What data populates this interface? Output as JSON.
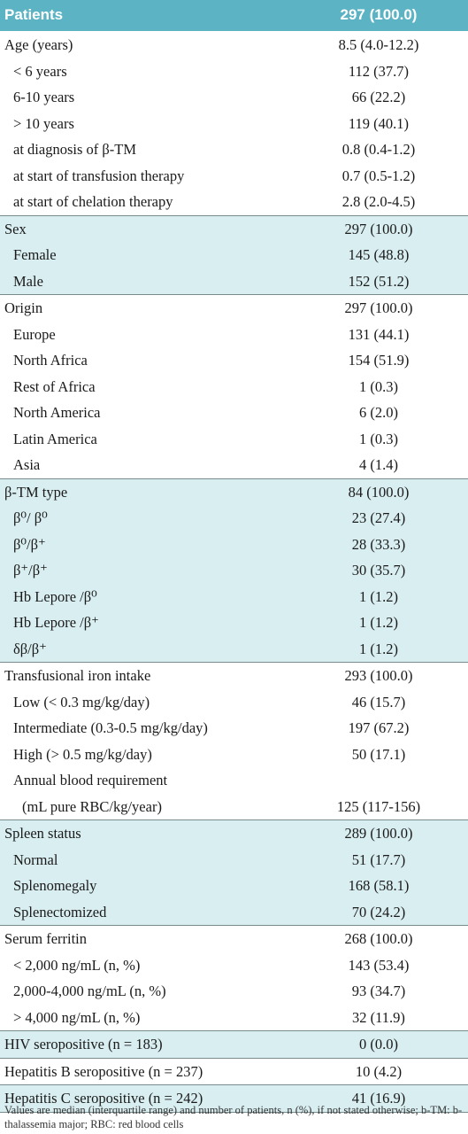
{
  "header": {
    "label": "Patients",
    "value": "297 (100.0)"
  },
  "sections": [
    {
      "shaded": false,
      "rows": [
        {
          "label": "Age (years)",
          "value": "8.5 (4.0-12.2)",
          "indent": 0
        },
        {
          "label": "< 6 years",
          "value": "112 (37.7)",
          "indent": 1
        },
        {
          "label": "6-10 years",
          "value": "66 (22.2)",
          "indent": 1
        },
        {
          "label": "> 10 years",
          "value": "119 (40.1)",
          "indent": 1
        },
        {
          "label": "at diagnosis of  β-TM",
          "value": "0.8 (0.4-1.2)",
          "indent": 1
        },
        {
          "label": "at start of transfusion therapy",
          "value": "0.7 (0.5-1.2)",
          "indent": 1
        },
        {
          "label": "at start of chelation therapy",
          "value": "2.8 (2.0-4.5)",
          "indent": 1
        }
      ]
    },
    {
      "shaded": true,
      "rows": [
        {
          "label": "Sex",
          "value": "297 (100.0)",
          "indent": 0
        },
        {
          "label": "Female",
          "value": "145 (48.8)",
          "indent": 1
        },
        {
          "label": "Male",
          "value": "152 (51.2)",
          "indent": 1
        }
      ]
    },
    {
      "shaded": false,
      "rows": [
        {
          "label": "Origin",
          "value": "297 (100.0)",
          "indent": 0
        },
        {
          "label": "Europe",
          "value": "131 (44.1)",
          "indent": 1
        },
        {
          "label": "North Africa",
          "value": "154 (51.9)",
          "indent": 1
        },
        {
          "label": "Rest of Africa",
          "value": "1 (0.3)",
          "indent": 1
        },
        {
          "label": "North America",
          "value": "6 (2.0)",
          "indent": 1
        },
        {
          "label": "Latin America",
          "value": "1 (0.3)",
          "indent": 1
        },
        {
          "label": "Asia",
          "value": "4 (1.4)",
          "indent": 1
        }
      ]
    },
    {
      "shaded": true,
      "rows": [
        {
          "label": "β-TM type",
          "value": "84 (100.0)",
          "indent": 0
        },
        {
          "label": "β⁰/ β⁰",
          "value": "23 (27.4)",
          "indent": 1
        },
        {
          "label": "β⁰/β⁺",
          "value": "28 (33.3)",
          "indent": 1
        },
        {
          "label": "β⁺/β⁺",
          "value": "30 (35.7)",
          "indent": 1
        },
        {
          "label": "Hb Lepore /β⁰",
          "value": "1 (1.2)",
          "indent": 1
        },
        {
          "label": "Hb Lepore /β⁺",
          "value": "1 (1.2)",
          "indent": 1
        },
        {
          "label": "δβ/β⁺",
          "value": "1 (1.2)",
          "indent": 1
        }
      ]
    },
    {
      "shaded": false,
      "rows": [
        {
          "label": "Transfusional iron intake",
          "value": "293 (100.0)",
          "indent": 0
        },
        {
          "label": "Low (< 0.3 mg/kg/day)",
          "value": "46 (15.7)",
          "indent": 1
        },
        {
          "label": "Intermediate (0.3-0.5 mg/kg/day)",
          "value": "197 (67.2)",
          "indent": 1
        },
        {
          "label": "High (> 0.5 mg/kg/day)",
          "value": "50 (17.1)",
          "indent": 1
        },
        {
          "label": "Annual blood requirement",
          "value": "",
          "indent": 1
        },
        {
          "label": "(mL pure RBC/kg/year)",
          "value": "125 (117-156)",
          "indent": 2
        }
      ]
    },
    {
      "shaded": true,
      "rows": [
        {
          "label": "Spleen status",
          "value": "289 (100.0)",
          "indent": 0
        },
        {
          "label": "Normal",
          "value": "51 (17.7)",
          "indent": 1
        },
        {
          "label": "Splenomegaly",
          "value": "168 (58.1)",
          "indent": 1
        },
        {
          "label": "Splenectomized",
          "value": "70 (24.2)",
          "indent": 1
        }
      ]
    },
    {
      "shaded": false,
      "rows": [
        {
          "label": "Serum ferritin",
          "value": "268 (100.0)",
          "indent": 0
        },
        {
          "label": "< 2,000 ng/mL (n, %)",
          "value": "143 (53.4)",
          "indent": 1
        },
        {
          "label": "2,000-4,000 ng/mL (n, %)",
          "value": "93 (34.7)",
          "indent": 1
        },
        {
          "label": "> 4,000 ng/mL (n, %)",
          "value": "32 (11.9)",
          "indent": 1
        }
      ]
    },
    {
      "shaded": true,
      "rows": [
        {
          "label": "HIV seropositive (n = 183)",
          "value": "0 (0.0)",
          "indent": 0
        }
      ]
    },
    {
      "shaded": false,
      "rows": [
        {
          "label": "Hepatitis B seropositive (n = 237)",
          "value": "10 (4.2)",
          "indent": 0
        }
      ]
    },
    {
      "shaded": true,
      "rows": [
        {
          "label": "Hepatitis C seropositive (n = 242)",
          "value": "41 (16.9)",
          "indent": 0
        }
      ]
    }
  ],
  "footnote": "Values are median (interquartile range) and number of patients, n (%), if not stated otherwise;  b-TM:  b-thalassemia major; RBC: red blood cells",
  "colors": {
    "header": "#5bb3c3",
    "shade": "#d9eef1",
    "rule": "#7a8b8d"
  }
}
